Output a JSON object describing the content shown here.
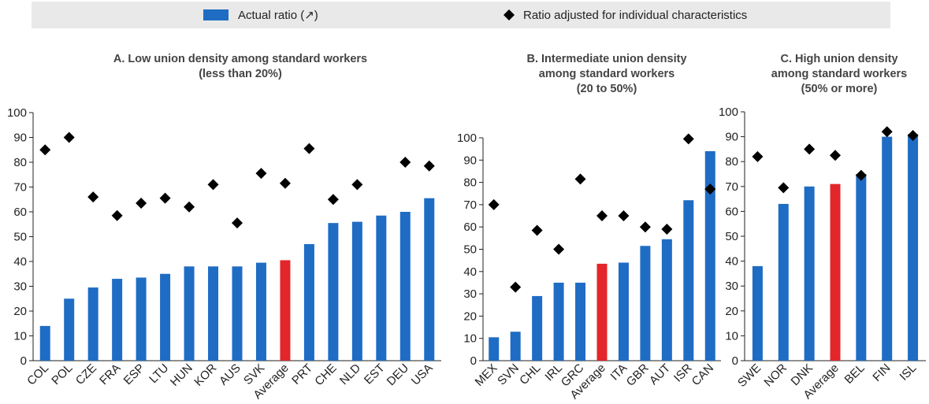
{
  "legend": [
    {
      "name": "Actual ratio (↗)",
      "color": "#1f6cc4"
    },
    {
      "name": "Ratio adjusted for individual characteristics",
      "color": "#000000"
    }
  ],
  "highlight_category": "Average",
  "highlight_color": "#e3262a",
  "chart_data": [
    {
      "type": "bar",
      "title": [
        "A. Low union density among standard workers",
        "(less than 20%)"
      ],
      "categories": [
        "COL",
        "POL",
        "CZE",
        "FRA",
        "ESP",
        "LTU",
        "HUN",
        "KOR",
        "AUS",
        "SVK",
        "Average",
        "PRT",
        "CHE",
        "NLD",
        "EST",
        "DEU",
        "USA"
      ],
      "series": [
        {
          "values": [
            14,
            25,
            29.5,
            33,
            33.5,
            35,
            38,
            38,
            38,
            39.5,
            40.5,
            47,
            55.5,
            56,
            58.5,
            60,
            65.5
          ]
        },
        {
          "values": [
            85,
            90,
            66,
            58.5,
            63.5,
            65.5,
            62,
            71,
            55.5,
            75.5,
            71.5,
            85.5,
            65,
            71,
            null,
            80,
            78.5
          ]
        }
      ],
      "ylim": [
        0,
        100
      ],
      "yticks": [
        0,
        10,
        20,
        30,
        40,
        50,
        60,
        70,
        80,
        90,
        100
      ]
    },
    {
      "type": "bar",
      "title": [
        "B. Intermediate union density",
        "among standard workers",
        "(20 to 50%)"
      ],
      "categories": [
        "MEX",
        "SVN",
        "CHL",
        "IRL",
        "GRC",
        "Average",
        "ITA",
        "GBR",
        "AUT",
        "ISR",
        "CAN"
      ],
      "series": [
        {
          "values": [
            10.5,
            13,
            29,
            35,
            35,
            43.5,
            44,
            51.5,
            54.5,
            72,
            94
          ]
        },
        {
          "values": [
            70,
            33,
            58.5,
            50,
            81.5,
            65,
            65,
            60,
            59,
            99.5,
            77
          ]
        }
      ],
      "ylim": [
        0,
        100
      ],
      "yticks": [
        0,
        10,
        20,
        30,
        40,
        50,
        60,
        70,
        80,
        90,
        100
      ]
    },
    {
      "type": "bar",
      "title": [
        "C. High union density",
        "among standard workers",
        "(50% or more)"
      ],
      "categories": [
        "SWE",
        "NOR",
        "DNK",
        "Average",
        "BEL",
        "FIN",
        "ISL"
      ],
      "series": [
        {
          "values": [
            38,
            63,
            70,
            71,
            75,
            90,
            91
          ]
        },
        {
          "values": [
            82,
            69.5,
            85,
            82.5,
            74.5,
            92,
            90.5
          ]
        }
      ],
      "ylim": [
        0,
        100
      ],
      "yticks": [
        0,
        10,
        20,
        30,
        40,
        50,
        60,
        70,
        80,
        90,
        100
      ]
    }
  ]
}
